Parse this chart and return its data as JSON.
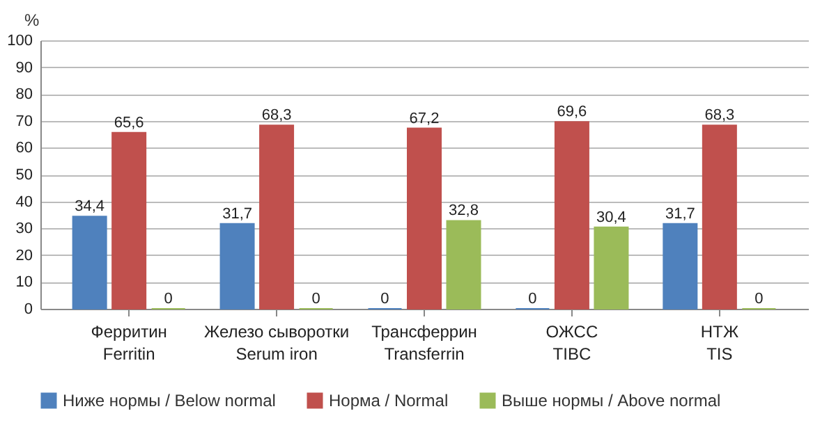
{
  "chart_data": {
    "type": "bar",
    "ylabel": "%",
    "categories": [
      "Ферритин\nFerritin",
      "Железо сыворотки\nSerum iron",
      "Трансферрин\nTransferrin",
      "ОЖСС\nTIBC",
      "НТЖ\nTIS"
    ],
    "series": [
      {
        "name": "Ниже нормы / Below normal",
        "color": "#4f81bd",
        "values": [
          34.4,
          31.7,
          0,
          0,
          31.7
        ],
        "value_labels": [
          "34,4",
          "31,7",
          "0",
          "0",
          "31,7"
        ]
      },
      {
        "name": "Норма / Normal",
        "color": "#c0504d",
        "values": [
          65.6,
          68.3,
          67.2,
          69.6,
          68.3
        ],
        "value_labels": [
          "65,6",
          "68,3",
          "67,2",
          "69,6",
          "68,3"
        ]
      },
      {
        "name": "Выше нормы / Above normal",
        "color": "#9bbb59",
        "values": [
          0,
          0,
          32.8,
          30.4,
          0
        ],
        "value_labels": [
          "0",
          "0",
          "32,8",
          "30,4",
          "0"
        ]
      }
    ],
    "ylim": [
      0,
      100
    ],
    "yticks": [
      0,
      10,
      20,
      30,
      40,
      50,
      60,
      70,
      80,
      90,
      100
    ],
    "grid": "y",
    "legend": "bottom"
  }
}
